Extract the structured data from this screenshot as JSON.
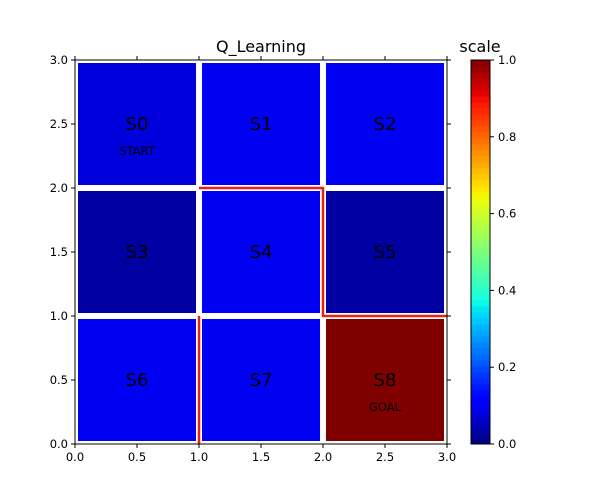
{
  "chart_data": {
    "type": "heatmap",
    "title": "Q_Learning",
    "colorbar_title": "scale",
    "xlim": [
      0,
      3
    ],
    "ylim": [
      0,
      3
    ],
    "x_ticks": [
      "0.0",
      "0.5",
      "1.0",
      "1.5",
      "2.0",
      "2.5",
      "3.0"
    ],
    "y_ticks": [
      "0.0",
      "0.5",
      "1.0",
      "1.5",
      "2.0",
      "2.5",
      "3.0"
    ],
    "colorbar_range": [
      0,
      1
    ],
    "colorbar_ticks": [
      "0.0",
      "0.2",
      "0.4",
      "0.6",
      "0.8",
      "1.0"
    ],
    "colormap": "jet",
    "cells": [
      {
        "label": "S0",
        "sublabel": "START",
        "col": 0,
        "row": 2,
        "value": 0.08
      },
      {
        "label": "S1",
        "sublabel": "",
        "col": 1,
        "row": 2,
        "value": 0.1
      },
      {
        "label": "S2",
        "sublabel": "",
        "col": 2,
        "row": 2,
        "value": 0.1
      },
      {
        "label": "S3",
        "sublabel": "",
        "col": 0,
        "row": 1,
        "value": 0.03
      },
      {
        "label": "S4",
        "sublabel": "",
        "col": 1,
        "row": 1,
        "value": 0.1
      },
      {
        "label": "S5",
        "sublabel": "",
        "col": 2,
        "row": 1,
        "value": 0.03
      },
      {
        "label": "S6",
        "sublabel": "",
        "col": 0,
        "row": 0,
        "value": 0.1
      },
      {
        "label": "S7",
        "sublabel": "",
        "col": 1,
        "row": 0,
        "value": 0.1
      },
      {
        "label": "S8",
        "sublabel": "GOAL",
        "col": 2,
        "row": 0,
        "value": 1.0
      }
    ],
    "walls": [
      {
        "points": [
          [
            1,
            2
          ],
          [
            2,
            2
          ],
          [
            2,
            1
          ],
          [
            3,
            1
          ]
        ],
        "color": "#e8201a"
      },
      {
        "points": [
          [
            1,
            0
          ],
          [
            1,
            1
          ]
        ],
        "color": "#e8201a"
      }
    ]
  }
}
